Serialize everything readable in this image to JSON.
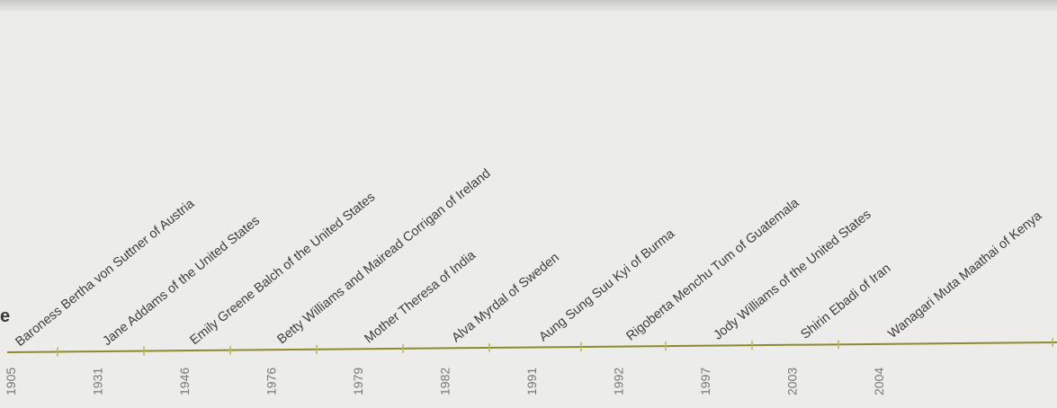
{
  "edge_letter": "e",
  "colors": {
    "axis": "#8d8a2b",
    "ticks": "#bcb85a",
    "name_text": "#3c3c3c",
    "year_text": "#777777"
  },
  "laureates": [
    {
      "name": "Baroness Bertha von Suttner of Austria",
      "year": "1905"
    },
    {
      "name": "Jane Addams of the United States",
      "year": "1931"
    },
    {
      "name": "Emily Greene Balch of the United States",
      "year": "1946"
    },
    {
      "name": "Betty Williams and Mairead Corrigan of Ireland",
      "year": "1976"
    },
    {
      "name": "Mother Theresa of India",
      "year": "1979"
    },
    {
      "name": "Alva Myrdal of Sweden",
      "year": "1982"
    },
    {
      "name": "Aung Sung Suu Kyi of Burma",
      "year": "1991"
    },
    {
      "name": "Rigoberta Menchu Tum of Guatemala",
      "year": "1992"
    },
    {
      "name": "Jody Williams of the United States",
      "year": "1997"
    },
    {
      "name": "Shirin Ebadi of Iran",
      "year": "2003"
    },
    {
      "name": "Wanagari Muta Maathai of Kenya",
      "year": "2004"
    }
  ]
}
